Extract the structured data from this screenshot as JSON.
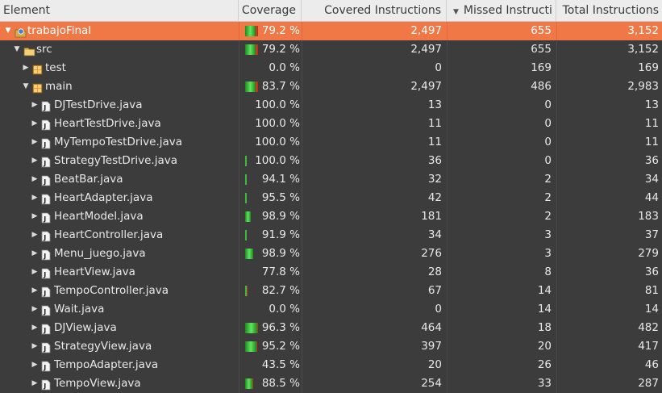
{
  "header": {
    "element": "Element",
    "coverage": "Coverage",
    "covered": "Covered Instructions",
    "missed": "Missed Instructi",
    "total": "Total Instructions"
  },
  "rows": [
    {
      "name": "trabajoFinal",
      "kind": "project",
      "depth": 0,
      "expanded": true,
      "coverage": "79.2 %",
      "covered": "2,497",
      "missed": "655",
      "total": "3,152",
      "cov_frac": 0.792,
      "selected": true
    },
    {
      "name": "src",
      "kind": "folder",
      "depth": 1,
      "expanded": true,
      "coverage": "79.2 %",
      "covered": "2,497",
      "missed": "655",
      "total": "3,152",
      "cov_frac": 0.792
    },
    {
      "name": "test",
      "kind": "package",
      "depth": 2,
      "expanded": false,
      "coverage": "0.0 %",
      "covered": "0",
      "missed": "169",
      "total": "169",
      "cov_frac": 0.0,
      "no_bar": true
    },
    {
      "name": "main",
      "kind": "package",
      "depth": 2,
      "expanded": true,
      "coverage": "83.7 %",
      "covered": "2,497",
      "missed": "486",
      "total": "2,983",
      "cov_frac": 0.837
    },
    {
      "name": "DJTestDrive.java",
      "kind": "java",
      "depth": 3,
      "expanded": false,
      "coverage": "100.0 %",
      "covered": "13",
      "missed": "0",
      "total": "13",
      "cov_frac": 1.0,
      "no_bar": true
    },
    {
      "name": "HeartTestDrive.java",
      "kind": "java",
      "depth": 3,
      "expanded": false,
      "coverage": "100.0 %",
      "covered": "11",
      "missed": "0",
      "total": "11",
      "cov_frac": 1.0,
      "no_bar": true
    },
    {
      "name": "MyTempoTestDrive.java",
      "kind": "java",
      "depth": 3,
      "expanded": false,
      "coverage": "100.0 %",
      "covered": "11",
      "missed": "0",
      "total": "11",
      "cov_frac": 1.0,
      "no_bar": true
    },
    {
      "name": "StrategyTestDrive.java",
      "kind": "java",
      "depth": 3,
      "expanded": false,
      "coverage": "100.0 %",
      "covered": "36",
      "missed": "0",
      "total": "36",
      "cov_frac": 1.0
    },
    {
      "name": "BeatBar.java",
      "kind": "java",
      "depth": 3,
      "expanded": false,
      "coverage": "94.1 %",
      "covered": "32",
      "missed": "2",
      "total": "34",
      "cov_frac": 0.941
    },
    {
      "name": "HeartAdapter.java",
      "kind": "java",
      "depth": 3,
      "expanded": false,
      "coverage": "95.5 %",
      "covered": "42",
      "missed": "2",
      "total": "44",
      "cov_frac": 0.955
    },
    {
      "name": "HeartModel.java",
      "kind": "java",
      "depth": 3,
      "expanded": false,
      "coverage": "98.9 %",
      "covered": "181",
      "missed": "2",
      "total": "183",
      "cov_frac": 0.989
    },
    {
      "name": "HeartController.java",
      "kind": "java",
      "depth": 3,
      "expanded": false,
      "coverage": "91.9 %",
      "covered": "34",
      "missed": "3",
      "total": "37",
      "cov_frac": 0.919
    },
    {
      "name": "Menu_juego.java",
      "kind": "java",
      "depth": 3,
      "expanded": false,
      "coverage": "98.9 %",
      "covered": "276",
      "missed": "3",
      "total": "279",
      "cov_frac": 0.989
    },
    {
      "name": "HeartView.java",
      "kind": "java",
      "depth": 3,
      "expanded": false,
      "coverage": "77.8 %",
      "covered": "28",
      "missed": "8",
      "total": "36",
      "cov_frac": 0.778,
      "no_bar": true
    },
    {
      "name": "TempoController.java",
      "kind": "java",
      "depth": 3,
      "expanded": false,
      "coverage": "82.7 %",
      "covered": "67",
      "missed": "14",
      "total": "81",
      "cov_frac": 0.827
    },
    {
      "name": "Wait.java",
      "kind": "java",
      "depth": 3,
      "expanded": false,
      "coverage": "0.0 %",
      "covered": "0",
      "missed": "14",
      "total": "14",
      "cov_frac": 0.0,
      "no_bar": true
    },
    {
      "name": "DJView.java",
      "kind": "java",
      "depth": 3,
      "expanded": false,
      "coverage": "96.3 %",
      "covered": "464",
      "missed": "18",
      "total": "482",
      "cov_frac": 0.963
    },
    {
      "name": "StrategyView.java",
      "kind": "java",
      "depth": 3,
      "expanded": false,
      "coverage": "95.2 %",
      "covered": "397",
      "missed": "20",
      "total": "417",
      "cov_frac": 0.952
    },
    {
      "name": "TempoAdapter.java",
      "kind": "java",
      "depth": 3,
      "expanded": false,
      "coverage": "43.5 %",
      "covered": "20",
      "missed": "26",
      "total": "46",
      "cov_frac": 0.435,
      "no_bar": true
    },
    {
      "name": "TempoView.java",
      "kind": "java",
      "depth": 3,
      "expanded": false,
      "coverage": "88.5 %",
      "covered": "254",
      "missed": "33",
      "total": "287",
      "cov_frac": 0.885
    }
  ]
}
